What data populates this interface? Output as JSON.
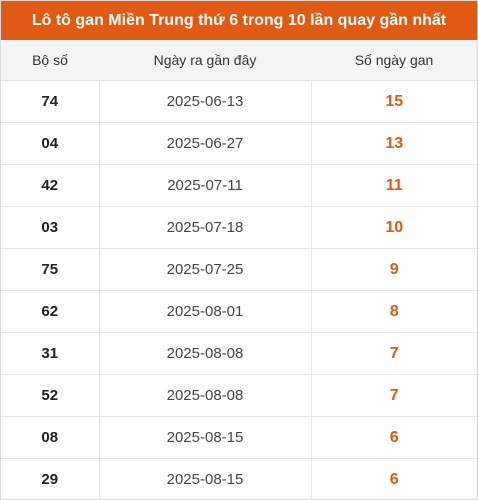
{
  "title": "Lô tô gan Miền Trung thứ 6 trong 10 lần quay gần nhất",
  "colors": {
    "accent": "#e05a13",
    "header_bg": "#f4f4f4"
  },
  "table": {
    "headers": {
      "number": "Bộ số",
      "date": "Ngày ra gần đây",
      "days": "Số ngày gan"
    },
    "rows": [
      {
        "number": "74",
        "date": "2025-06-13",
        "days": "15"
      },
      {
        "number": "04",
        "date": "2025-06-27",
        "days": "13"
      },
      {
        "number": "42",
        "date": "2025-07-11",
        "days": "11"
      },
      {
        "number": "03",
        "date": "2025-07-18",
        "days": "10"
      },
      {
        "number": "75",
        "date": "2025-07-25",
        "days": "9"
      },
      {
        "number": "62",
        "date": "2025-08-01",
        "days": "8"
      },
      {
        "number": "31",
        "date": "2025-08-08",
        "days": "7"
      },
      {
        "number": "52",
        "date": "2025-08-08",
        "days": "7"
      },
      {
        "number": "08",
        "date": "2025-08-15",
        "days": "6"
      },
      {
        "number": "29",
        "date": "2025-08-15",
        "days": "6"
      }
    ]
  }
}
